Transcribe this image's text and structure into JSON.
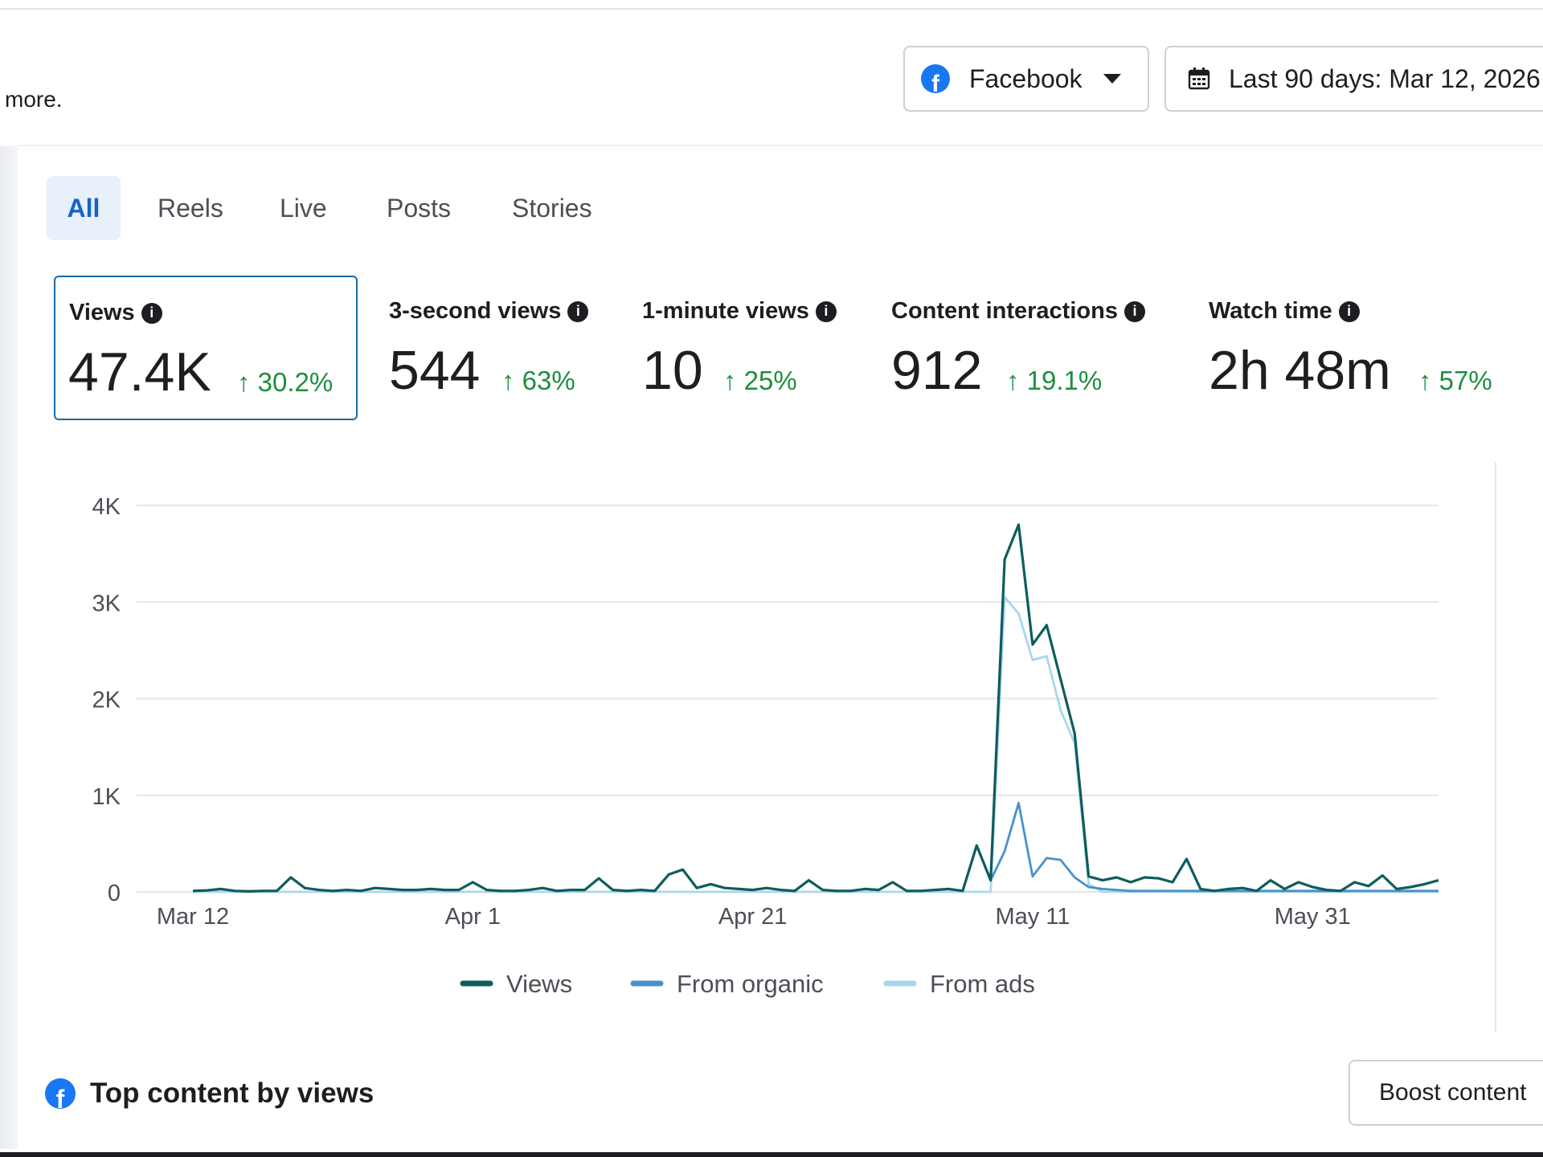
{
  "header": {
    "more_text": "more.",
    "platform_dropdown": {
      "label": "Facebook"
    },
    "date_range": {
      "label": "Last 90 days: Mar 12, 2026"
    }
  },
  "tabs": [
    {
      "label": "All",
      "active": true
    },
    {
      "label": "Reels"
    },
    {
      "label": "Live"
    },
    {
      "label": "Posts"
    },
    {
      "label": "Stories"
    }
  ],
  "metrics": [
    {
      "label": "Views",
      "value": "47.4K",
      "change": "↑ 30.2%",
      "selected": true
    },
    {
      "label": "3-second views",
      "value": "544",
      "change": "↑ 63%"
    },
    {
      "label": "1-minute views",
      "value": "10",
      "change": "↑ 25%"
    },
    {
      "label": "Content interactions",
      "value": "912",
      "change": "↑ 19.1%"
    },
    {
      "label": "Watch time",
      "value": "2h 48m",
      "change": "↑ 57%"
    }
  ],
  "colors": {
    "views": "#0f5c5c",
    "organic": "#4a90c8",
    "ads": "#a9d6ee",
    "positive": "#1e8e3e",
    "accent": "#1877f2",
    "grid": "#e4e6eb"
  },
  "chart_data": {
    "type": "line",
    "x": [
      "Mar 12",
      "Mar 13",
      "Mar 14",
      "Mar 15",
      "Mar 16",
      "Mar 17",
      "Mar 18",
      "Mar 19",
      "Mar 20",
      "Mar 21",
      "Mar 22",
      "Mar 23",
      "Mar 24",
      "Mar 25",
      "Mar 26",
      "Mar 27",
      "Mar 28",
      "Mar 29",
      "Mar 30",
      "Mar 31",
      "Apr 1",
      "Apr 2",
      "Apr 3",
      "Apr 4",
      "Apr 5",
      "Apr 6",
      "Apr 7",
      "Apr 8",
      "Apr 9",
      "Apr 10",
      "Apr 11",
      "Apr 12",
      "Apr 13",
      "Apr 14",
      "Apr 15",
      "Apr 16",
      "Apr 17",
      "Apr 18",
      "Apr 19",
      "Apr 20",
      "Apr 21",
      "Apr 22",
      "Apr 23",
      "Apr 24",
      "Apr 25",
      "Apr 26",
      "Apr 27",
      "Apr 28",
      "Apr 29",
      "Apr 30",
      "May 1",
      "May 2",
      "May 3",
      "May 4",
      "May 5",
      "May 6",
      "May 7",
      "May 8",
      "May 9",
      "May 10",
      "May 11",
      "May 12",
      "May 13",
      "May 14",
      "May 15",
      "May 16",
      "May 17",
      "May 18",
      "May 19",
      "May 20",
      "May 21",
      "May 22",
      "May 23",
      "May 24",
      "May 25",
      "May 26",
      "May 27",
      "May 28",
      "May 29",
      "May 30",
      "May 31",
      "Jun 1",
      "Jun 2",
      "Jun 3",
      "Jun 4",
      "Jun 5",
      "Jun 6",
      "Jun 7",
      "Jun 8",
      "Jun 9"
    ],
    "x_ticks": [
      "Mar 12",
      "Apr 1",
      "Apr 21",
      "May 11",
      "May 31"
    ],
    "y_ticks": [
      "0",
      "1K",
      "2K",
      "3K",
      "4K"
    ],
    "ylim": [
      0,
      4000
    ],
    "grid": true,
    "legend_position": "bottom",
    "series": [
      {
        "name": "Views",
        "color": "#0f5c5c",
        "values": [
          10,
          15,
          30,
          10,
          5,
          10,
          10,
          150,
          40,
          20,
          10,
          20,
          10,
          40,
          30,
          20,
          20,
          30,
          20,
          20,
          100,
          20,
          10,
          10,
          20,
          40,
          10,
          20,
          20,
          140,
          20,
          10,
          20,
          10,
          180,
          230,
          40,
          80,
          40,
          30,
          20,
          40,
          20,
          10,
          120,
          20,
          10,
          10,
          30,
          20,
          100,
          10,
          10,
          20,
          30,
          10,
          480,
          120,
          3440,
          3800,
          2560,
          2760,
          2200,
          1640,
          160,
          120,
          150,
          100,
          150,
          140,
          100,
          340,
          30,
          10,
          30,
          40,
          10,
          120,
          30,
          100,
          50,
          20,
          10,
          100,
          60,
          170,
          30,
          50,
          80,
          120
        ]
      },
      {
        "name": "From organic",
        "color": "#4a90c8",
        "values": [
          10,
          15,
          30,
          10,
          5,
          10,
          10,
          150,
          40,
          20,
          10,
          20,
          10,
          40,
          30,
          20,
          20,
          30,
          20,
          20,
          100,
          20,
          10,
          10,
          20,
          40,
          10,
          20,
          20,
          140,
          20,
          10,
          20,
          10,
          180,
          230,
          40,
          80,
          40,
          30,
          20,
          40,
          20,
          10,
          120,
          20,
          10,
          10,
          30,
          20,
          100,
          10,
          10,
          20,
          30,
          10,
          480,
          120,
          420,
          920,
          160,
          350,
          330,
          150,
          50,
          30,
          20,
          10,
          10,
          10,
          10,
          10,
          10,
          10,
          10,
          10,
          10,
          10,
          10,
          10,
          10,
          10,
          10,
          10,
          10,
          10,
          10,
          10,
          10,
          10
        ]
      },
      {
        "name": "From ads",
        "color": "#a9d6ee",
        "values": [
          0,
          0,
          0,
          0,
          0,
          0,
          0,
          0,
          0,
          0,
          0,
          0,
          0,
          0,
          0,
          0,
          0,
          0,
          0,
          0,
          0,
          0,
          0,
          0,
          0,
          0,
          0,
          0,
          0,
          0,
          0,
          0,
          0,
          0,
          0,
          0,
          0,
          0,
          0,
          0,
          0,
          0,
          0,
          0,
          0,
          0,
          0,
          0,
          0,
          0,
          0,
          0,
          0,
          0,
          0,
          0,
          0,
          0,
          3050,
          2880,
          2400,
          2440,
          1880,
          1540,
          80,
          0,
          0,
          0,
          0,
          0,
          0,
          0,
          0,
          0,
          0,
          0,
          0,
          0,
          0,
          0,
          0,
          0,
          0,
          0,
          0,
          0,
          0,
          0,
          0,
          0
        ]
      }
    ]
  },
  "top_content": {
    "title": "Top content by views"
  },
  "boost_button": {
    "label": "Boost content"
  }
}
